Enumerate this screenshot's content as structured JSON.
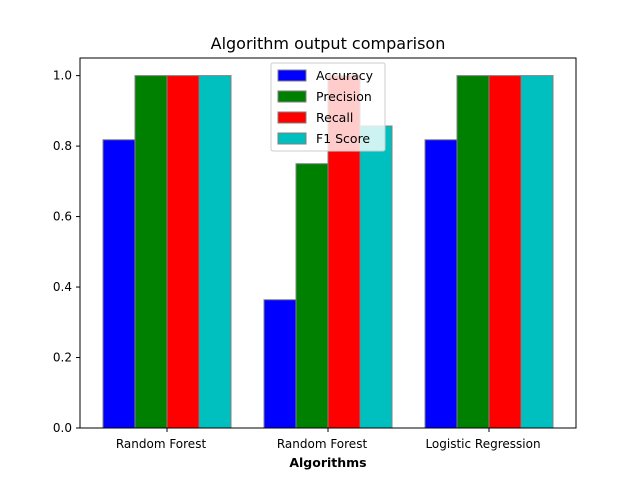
{
  "chart_data": {
    "type": "bar",
    "title": "Algorithm output comparison",
    "xlabel": "Algorithms",
    "ylabel": "",
    "categories": [
      "Random Forest",
      "Random Forest",
      "Logistic Regression"
    ],
    "series": [
      {
        "name": "Accuracy",
        "color": "#0000ff",
        "values": [
          0.818,
          0.364,
          0.818
        ]
      },
      {
        "name": "Precision",
        "color": "#008000",
        "values": [
          1.0,
          0.75,
          1.0
        ]
      },
      {
        "name": "Recall",
        "color": "#ff0000",
        "values": [
          1.0,
          1.0,
          1.0
        ]
      },
      {
        "name": "F1 Score",
        "color": "#00bfbf",
        "values": [
          1.0,
          0.857,
          1.0
        ]
      }
    ],
    "ylim": [
      0,
      1.05
    ],
    "yticks": [
      "0.0",
      "0.2",
      "0.4",
      "0.6",
      "0.8",
      "1.0"
    ],
    "grid": false,
    "legend_position": "top-center",
    "bar_edge_color": "#808080"
  }
}
